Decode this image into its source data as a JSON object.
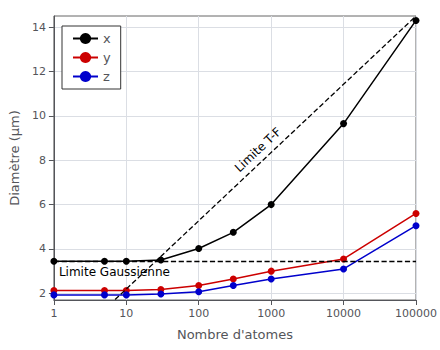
{
  "chart_data": {
    "type": "line",
    "xlabel": "Nombre d'atomes",
    "ylabel": "Diamètre (µm)",
    "x": [
      1,
      5,
      10,
      30,
      100,
      300,
      1000,
      10000,
      100000
    ],
    "series": [
      {
        "name": "x",
        "color": "#000000",
        "marker": "circle",
        "values": [
          3.45,
          3.45,
          3.45,
          3.5,
          4.02,
          4.75,
          6.0,
          9.65,
          14.3
        ]
      },
      {
        "name": "y",
        "color": "#cc0000",
        "marker": "circle",
        "values": [
          2.13,
          2.13,
          2.13,
          2.17,
          2.35,
          2.65,
          3.0,
          3.55,
          5.6
        ]
      },
      {
        "name": "z",
        "color": "#0000cc",
        "marker": "circle",
        "values": [
          1.93,
          1.93,
          1.93,
          1.97,
          2.07,
          2.35,
          2.65,
          3.1,
          5.05
        ]
      }
    ],
    "annotations": [
      {
        "text": "Limite Gaussienne",
        "y": 3.45,
        "color": "#000000",
        "line_style": "dashed"
      },
      {
        "text": "Limite T-F",
        "x": [
          7,
          100000
        ],
        "y": [
          1.72,
          14.5
        ],
        "color": "#000000",
        "line_style": "dashed"
      }
    ],
    "log": "x",
    "xlim": [
      1,
      100000
    ],
    "xticks": [
      1,
      10,
      100,
      1000,
      10000,
      100000
    ],
    "ylim": [
      1.7,
      14.5
    ],
    "yticks": [
      2,
      4,
      6,
      8,
      10,
      12,
      14
    ],
    "grid": true,
    "legend": "upper left"
  }
}
